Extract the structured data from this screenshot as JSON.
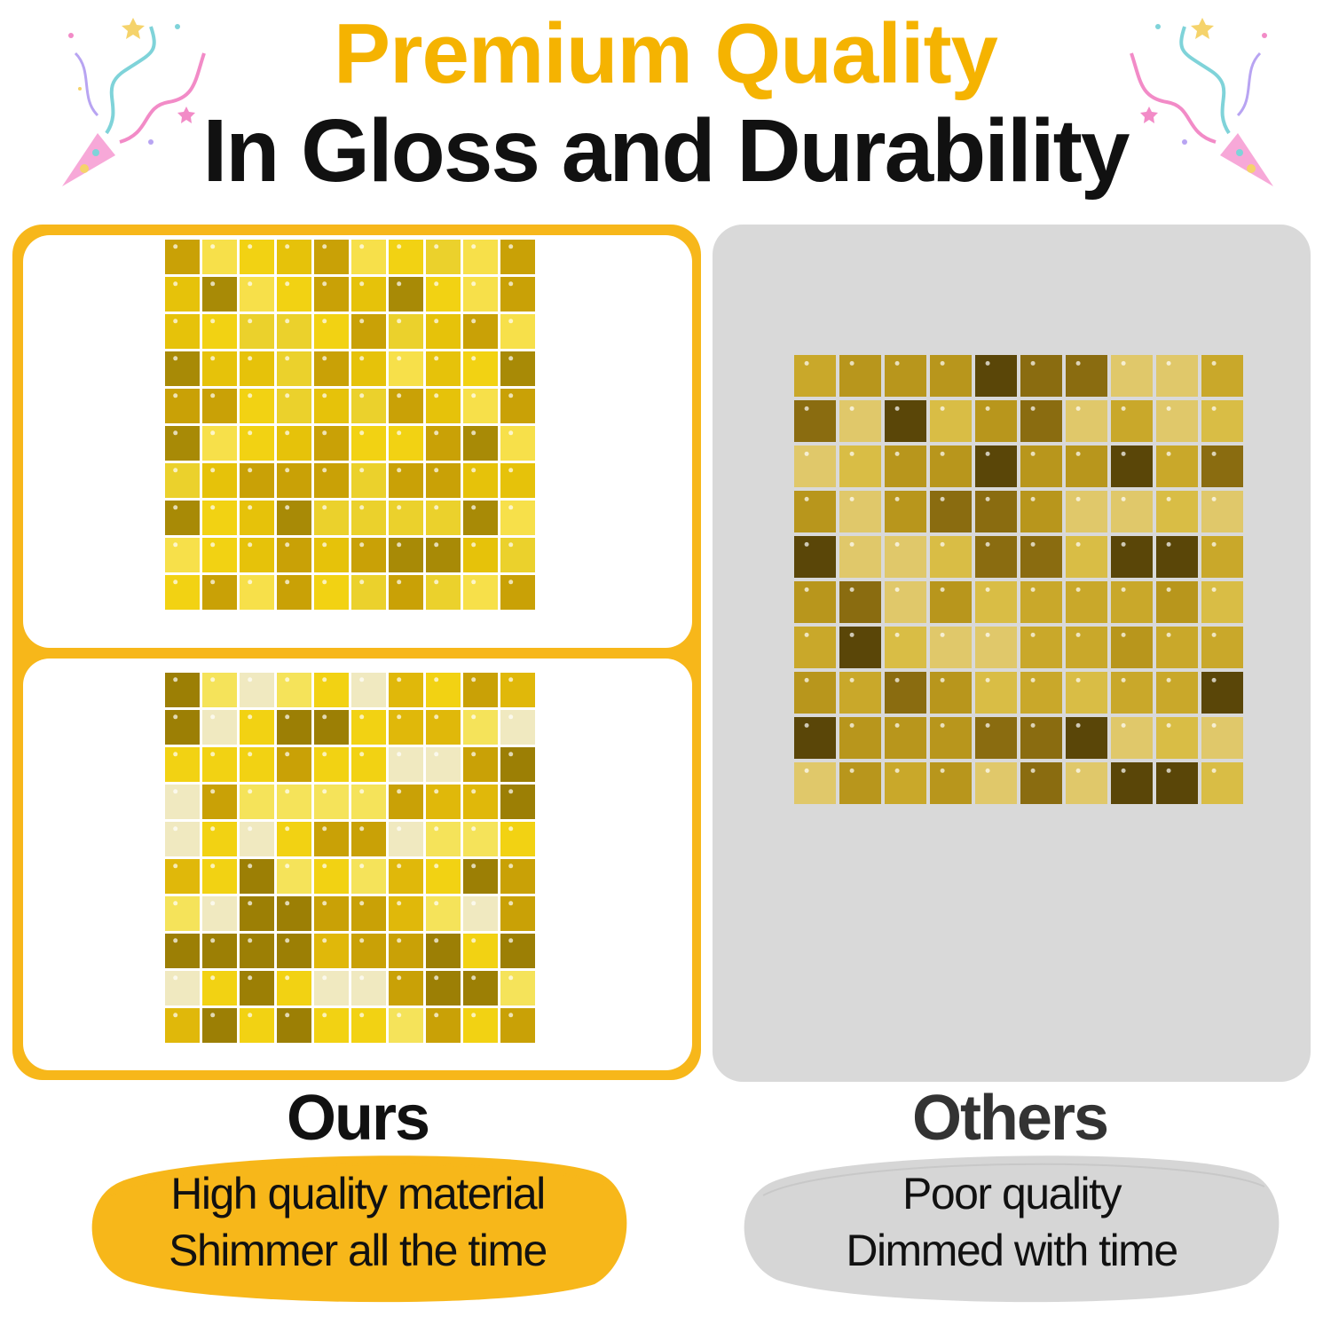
{
  "header": {
    "title_line1": "Premium Quality",
    "title_line2": "In Gloss and Durability"
  },
  "comparison": {
    "ours": {
      "label": "Ours",
      "features": [
        "High quality material",
        "Shimmer all the time"
      ],
      "panel_color": "#f7b71a",
      "sequin_color": "#e8c20e"
    },
    "others": {
      "label": "Others",
      "features": [
        "Poor quality",
        "Dimmed with time"
      ],
      "panel_color": "#d9d9d9",
      "sequin_color": "#c9a82a"
    }
  },
  "decorations": {
    "confetti_icon": "party-popper-icon",
    "confetti_colors": [
      "#f28bc7",
      "#7fd3d9",
      "#f5d36b",
      "#b8a4f2"
    ]
  }
}
